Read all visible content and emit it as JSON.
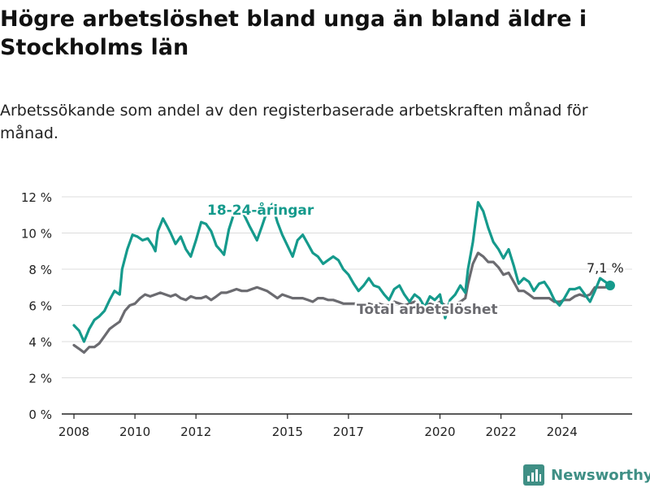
{
  "header": {
    "title": "Högre arbetslöshet bland unga än bland äldre i Stockholms län",
    "subtitle": "Arbetssökande som andel av den registerbaserade arbetskraften månad för månad."
  },
  "brand": {
    "name": "Newsworthy",
    "icon": "bar-chart-logo-icon"
  },
  "colors": {
    "youth": "#159a8c",
    "total": "#6b6b70",
    "grid": "#dcdcdc",
    "brand": "#3f8f85"
  },
  "chart_data": {
    "type": "line",
    "ylim": [
      0,
      12
    ],
    "xlim": [
      2007.6,
      2026.3
    ],
    "grid": true,
    "y_ticks": [
      {
        "value": 0,
        "label": "0 %"
      },
      {
        "value": 2,
        "label": "2 %"
      },
      {
        "value": 4,
        "label": "4 %"
      },
      {
        "value": 6,
        "label": "6 %"
      },
      {
        "value": 8,
        "label": "8 %"
      },
      {
        "value": 10,
        "label": "10 %"
      },
      {
        "value": 12,
        "label": "12 %"
      }
    ],
    "x_ticks": [
      {
        "value": 2008,
        "label": "2008"
      },
      {
        "value": 2010,
        "label": "2010"
      },
      {
        "value": 2012,
        "label": "2012"
      },
      {
        "value": 2015,
        "label": "2015"
      },
      {
        "value": 2017,
        "label": "2017"
      },
      {
        "value": 2020,
        "label": "2020"
      },
      {
        "value": 2022,
        "label": "2022"
      },
      {
        "value": 2024,
        "label": "2024"
      }
    ],
    "series": [
      {
        "name": "18-24-åringar",
        "key": "youth",
        "points": [
          [
            2008.0,
            4.9
          ],
          [
            2008.17,
            4.6
          ],
          [
            2008.33,
            4.0
          ],
          [
            2008.5,
            4.7
          ],
          [
            2008.67,
            5.2
          ],
          [
            2008.83,
            5.4
          ],
          [
            2009.0,
            5.7
          ],
          [
            2009.17,
            6.3
          ],
          [
            2009.33,
            6.8
          ],
          [
            2009.5,
            6.6
          ],
          [
            2009.58,
            8.0
          ],
          [
            2009.75,
            9.1
          ],
          [
            2009.92,
            9.9
          ],
          [
            2010.08,
            9.8
          ],
          [
            2010.25,
            9.6
          ],
          [
            2010.42,
            9.7
          ],
          [
            2010.58,
            9.3
          ],
          [
            2010.67,
            9.0
          ],
          [
            2010.75,
            10.1
          ],
          [
            2010.92,
            10.8
          ],
          [
            2011.08,
            10.3
          ],
          [
            2011.17,
            10.0
          ],
          [
            2011.33,
            9.4
          ],
          [
            2011.5,
            9.8
          ],
          [
            2011.67,
            9.1
          ],
          [
            2011.83,
            8.7
          ],
          [
            2012.0,
            9.6
          ],
          [
            2012.17,
            10.6
          ],
          [
            2012.33,
            10.5
          ],
          [
            2012.5,
            10.1
          ],
          [
            2012.67,
            9.3
          ],
          [
            2012.83,
            9.0
          ],
          [
            2012.92,
            8.8
          ],
          [
            2013.08,
            10.2
          ],
          [
            2013.25,
            11.1
          ],
          [
            2013.42,
            11.4
          ],
          [
            2013.58,
            11.0
          ],
          [
            2013.75,
            10.4
          ],
          [
            2014.0,
            9.6
          ],
          [
            2014.17,
            10.4
          ],
          [
            2014.33,
            11.2
          ],
          [
            2014.5,
            11.6
          ],
          [
            2014.67,
            10.6
          ],
          [
            2014.83,
            9.9
          ],
          [
            2015.0,
            9.3
          ],
          [
            2015.17,
            8.7
          ],
          [
            2015.33,
            9.6
          ],
          [
            2015.5,
            9.9
          ],
          [
            2015.67,
            9.4
          ],
          [
            2015.83,
            8.9
          ],
          [
            2016.0,
            8.7
          ],
          [
            2016.17,
            8.3
          ],
          [
            2016.33,
            8.5
          ],
          [
            2016.5,
            8.7
          ],
          [
            2016.67,
            8.5
          ],
          [
            2016.83,
            8.0
          ],
          [
            2017.0,
            7.7
          ],
          [
            2017.17,
            7.2
          ],
          [
            2017.33,
            6.8
          ],
          [
            2017.5,
            7.1
          ],
          [
            2017.67,
            7.5
          ],
          [
            2017.83,
            7.1
          ],
          [
            2018.0,
            7.0
          ],
          [
            2018.17,
            6.6
          ],
          [
            2018.33,
            6.3
          ],
          [
            2018.5,
            6.9
          ],
          [
            2018.67,
            7.1
          ],
          [
            2018.83,
            6.6
          ],
          [
            2019.0,
            6.2
          ],
          [
            2019.17,
            6.6
          ],
          [
            2019.33,
            6.4
          ],
          [
            2019.5,
            5.9
          ],
          [
            2019.67,
            6.5
          ],
          [
            2019.83,
            6.3
          ],
          [
            2020.0,
            6.6
          ],
          [
            2020.17,
            5.3
          ],
          [
            2020.33,
            6.3
          ],
          [
            2020.5,
            6.6
          ],
          [
            2020.67,
            7.1
          ],
          [
            2020.83,
            6.7
          ],
          [
            2020.92,
            8.0
          ],
          [
            2021.08,
            9.5
          ],
          [
            2021.25,
            11.7
          ],
          [
            2021.42,
            11.2
          ],
          [
            2021.58,
            10.3
          ],
          [
            2021.75,
            9.5
          ],
          [
            2021.92,
            9.1
          ],
          [
            2022.08,
            8.6
          ],
          [
            2022.25,
            9.1
          ],
          [
            2022.42,
            8.2
          ],
          [
            2022.58,
            7.2
          ],
          [
            2022.75,
            7.5
          ],
          [
            2022.92,
            7.3
          ],
          [
            2023.08,
            6.8
          ],
          [
            2023.25,
            7.2
          ],
          [
            2023.42,
            7.3
          ],
          [
            2023.58,
            6.9
          ],
          [
            2023.75,
            6.3
          ],
          [
            2023.92,
            6.0
          ],
          [
            2024.08,
            6.4
          ],
          [
            2024.25,
            6.9
          ],
          [
            2024.42,
            6.9
          ],
          [
            2024.58,
            7.0
          ],
          [
            2024.75,
            6.6
          ],
          [
            2024.92,
            6.2
          ],
          [
            2025.08,
            6.8
          ],
          [
            2025.25,
            7.5
          ],
          [
            2025.42,
            7.3
          ],
          [
            2025.58,
            7.1
          ]
        ]
      },
      {
        "name": "Total arbetslöshet",
        "key": "total",
        "points": [
          [
            2008.0,
            3.8
          ],
          [
            2008.17,
            3.6
          ],
          [
            2008.33,
            3.4
          ],
          [
            2008.5,
            3.7
          ],
          [
            2008.67,
            3.7
          ],
          [
            2008.83,
            3.9
          ],
          [
            2009.0,
            4.3
          ],
          [
            2009.17,
            4.7
          ],
          [
            2009.33,
            4.9
          ],
          [
            2009.5,
            5.1
          ],
          [
            2009.67,
            5.7
          ],
          [
            2009.83,
            6.0
          ],
          [
            2010.0,
            6.1
          ],
          [
            2010.17,
            6.4
          ],
          [
            2010.33,
            6.6
          ],
          [
            2010.5,
            6.5
          ],
          [
            2010.67,
            6.6
          ],
          [
            2010.83,
            6.7
          ],
          [
            2011.0,
            6.6
          ],
          [
            2011.17,
            6.5
          ],
          [
            2011.33,
            6.6
          ],
          [
            2011.5,
            6.4
          ],
          [
            2011.67,
            6.3
          ],
          [
            2011.83,
            6.5
          ],
          [
            2012.0,
            6.4
          ],
          [
            2012.17,
            6.4
          ],
          [
            2012.33,
            6.5
          ],
          [
            2012.5,
            6.3
          ],
          [
            2012.67,
            6.5
          ],
          [
            2012.83,
            6.7
          ],
          [
            2013.0,
            6.7
          ],
          [
            2013.17,
            6.8
          ],
          [
            2013.33,
            6.9
          ],
          [
            2013.5,
            6.8
          ],
          [
            2013.67,
            6.8
          ],
          [
            2013.83,
            6.9
          ],
          [
            2014.0,
            7.0
          ],
          [
            2014.17,
            6.9
          ],
          [
            2014.33,
            6.8
          ],
          [
            2014.5,
            6.6
          ],
          [
            2014.67,
            6.4
          ],
          [
            2014.83,
            6.6
          ],
          [
            2015.0,
            6.5
          ],
          [
            2015.17,
            6.4
          ],
          [
            2015.33,
            6.4
          ],
          [
            2015.5,
            6.4
          ],
          [
            2015.67,
            6.3
          ],
          [
            2015.83,
            6.2
          ],
          [
            2016.0,
            6.4
          ],
          [
            2016.17,
            6.4
          ],
          [
            2016.33,
            6.3
          ],
          [
            2016.5,
            6.3
          ],
          [
            2016.67,
            6.2
          ],
          [
            2016.83,
            6.1
          ],
          [
            2017.0,
            6.1
          ],
          [
            2017.17,
            6.1
          ],
          [
            2017.33,
            6.1
          ],
          [
            2017.5,
            6.0
          ],
          [
            2017.67,
            6.1
          ],
          [
            2017.83,
            6.0
          ],
          [
            2018.0,
            6.1
          ],
          [
            2018.17,
            6.0
          ],
          [
            2018.33,
            6.0
          ],
          [
            2018.5,
            6.2
          ],
          [
            2018.67,
            6.1
          ],
          [
            2018.83,
            6.0
          ],
          [
            2019.0,
            6.1
          ],
          [
            2019.17,
            6.2
          ],
          [
            2019.33,
            6.0
          ],
          [
            2019.5,
            5.9
          ],
          [
            2019.67,
            6.1
          ],
          [
            2019.83,
            6.0
          ],
          [
            2020.0,
            6.2
          ],
          [
            2020.17,
            6.0
          ],
          [
            2020.33,
            6.0
          ],
          [
            2020.5,
            6.1
          ],
          [
            2020.67,
            6.2
          ],
          [
            2020.83,
            6.4
          ],
          [
            2020.92,
            7.2
          ],
          [
            2021.08,
            8.3
          ],
          [
            2021.25,
            8.9
          ],
          [
            2021.42,
            8.7
          ],
          [
            2021.58,
            8.4
          ],
          [
            2021.75,
            8.4
          ],
          [
            2021.92,
            8.1
          ],
          [
            2022.08,
            7.7
          ],
          [
            2022.25,
            7.8
          ],
          [
            2022.42,
            7.3
          ],
          [
            2022.58,
            6.8
          ],
          [
            2022.75,
            6.8
          ],
          [
            2022.92,
            6.6
          ],
          [
            2023.08,
            6.4
          ],
          [
            2023.25,
            6.4
          ],
          [
            2023.42,
            6.4
          ],
          [
            2023.58,
            6.4
          ],
          [
            2023.75,
            6.2
          ],
          [
            2023.92,
            6.2
          ],
          [
            2024.08,
            6.3
          ],
          [
            2024.25,
            6.3
          ],
          [
            2024.42,
            6.5
          ],
          [
            2024.58,
            6.6
          ],
          [
            2024.75,
            6.5
          ],
          [
            2024.92,
            6.6
          ],
          [
            2025.08,
            7.0
          ],
          [
            2025.25,
            7.0
          ],
          [
            2025.42,
            7.0
          ],
          [
            2025.58,
            7.1
          ]
        ]
      }
    ],
    "annotations": [
      {
        "text": "18-24-åringar",
        "series": "youth"
      },
      {
        "text": "Total arbetslöshet",
        "series": "total"
      },
      {
        "text": "7,1 %",
        "series": "youth",
        "endpoint_value": 7.1
      }
    ]
  }
}
